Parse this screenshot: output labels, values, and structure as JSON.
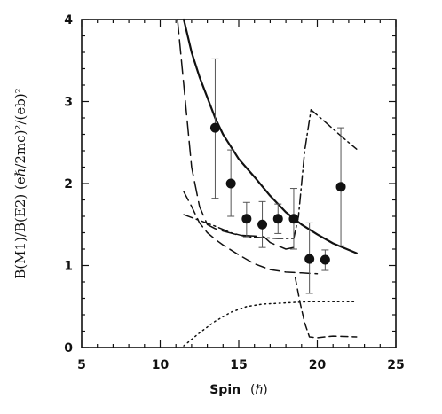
{
  "chart_data": {
    "type": "line",
    "xlabel": "Spin",
    "xlabel_unit": "(ℏ)",
    "ylabel": "B(M1)/B(E2)  (eℏ/2mc)²/(eb)²",
    "xlim": [
      5,
      25
    ],
    "ylim": [
      0,
      4
    ],
    "x_ticks": [
      5,
      10,
      15,
      20,
      25
    ],
    "x_tick_labels": [
      "5",
      "10",
      "15",
      "20",
      "25"
    ],
    "y_ticks": [
      0,
      1,
      2,
      3,
      4
    ],
    "y_tick_labels": [
      "0",
      "1",
      "2",
      "3",
      "4"
    ],
    "grid": false,
    "legend": "none",
    "experimental": {
      "x": [
        13.5,
        14.5,
        15.5,
        16.5,
        17.5,
        18.5,
        19.5,
        20.5,
        21.5
      ],
      "y": [
        2.68,
        2.0,
        1.57,
        1.5,
        1.57,
        1.57,
        1.08,
        1.07,
        1.96
      ],
      "err_low": [
        0.86,
        0.4,
        0.22,
        0.28,
        0.18,
        0.37,
        0.42,
        0.13,
        0.72
      ],
      "err_high": [
        0.84,
        0.41,
        0.2,
        0.28,
        0.18,
        0.37,
        0.44,
        0.12,
        0.72
      ]
    },
    "series": [
      {
        "style": "solid",
        "x": [
          11.5,
          12.0,
          12.5,
          13.0,
          13.5,
          14.0,
          15.0,
          16.0,
          17.0,
          18.0,
          19.0,
          20.0,
          21.0,
          22.5
        ],
        "y": [
          4.0,
          3.6,
          3.3,
          3.05,
          2.8,
          2.6,
          2.3,
          2.08,
          1.85,
          1.65,
          1.5,
          1.38,
          1.27,
          1.15
        ]
      },
      {
        "style": "long-dash",
        "x": [
          11.1,
          11.5,
          12.0,
          12.5,
          13.0,
          13.5,
          14.0,
          15.0,
          16.0,
          16.6,
          17.0,
          18.0,
          18.5
        ],
        "y": [
          4.0,
          3.2,
          2.2,
          1.72,
          1.5,
          1.45,
          1.42,
          1.37,
          1.36,
          1.35,
          1.28,
          1.2,
          1.22
        ]
      },
      {
        "style": "medium-dash",
        "x": [
          11.5,
          12.0,
          12.5,
          13.0,
          13.5,
          14.0,
          15.0,
          16.0,
          17.0,
          18.0,
          19.0,
          20.0
        ],
        "y": [
          1.9,
          1.72,
          1.52,
          1.4,
          1.32,
          1.25,
          1.13,
          1.02,
          0.95,
          0.92,
          0.91,
          0.9
        ]
      },
      {
        "style": "dash-dot",
        "x": [
          11.5,
          12.5,
          13.5,
          14.5,
          15.5,
          16.5,
          17.5,
          18.5,
          18.8,
          19.2,
          19.6,
          20.5,
          21.5,
          22.5
        ],
        "y": [
          1.62,
          1.55,
          1.48,
          1.4,
          1.35,
          1.34,
          1.33,
          1.33,
          1.6,
          2.4,
          2.9,
          2.75,
          2.58,
          2.42
        ]
      },
      {
        "style": "short-dash",
        "x": [
          18.6,
          18.9,
          19.2,
          19.5,
          20.0,
          21.0,
          22.5
        ],
        "y": [
          0.85,
          0.55,
          0.3,
          0.13,
          0.12,
          0.14,
          0.13
        ]
      },
      {
        "style": "dotted",
        "x": [
          11.5,
          12.5,
          13.5,
          14.5,
          15.5,
          16.5,
          17.5,
          18.5,
          19.5,
          20.5,
          21.5,
          22.5
        ],
        "y": [
          0.02,
          0.18,
          0.32,
          0.43,
          0.5,
          0.53,
          0.54,
          0.55,
          0.56,
          0.56,
          0.56,
          0.56
        ]
      }
    ]
  }
}
